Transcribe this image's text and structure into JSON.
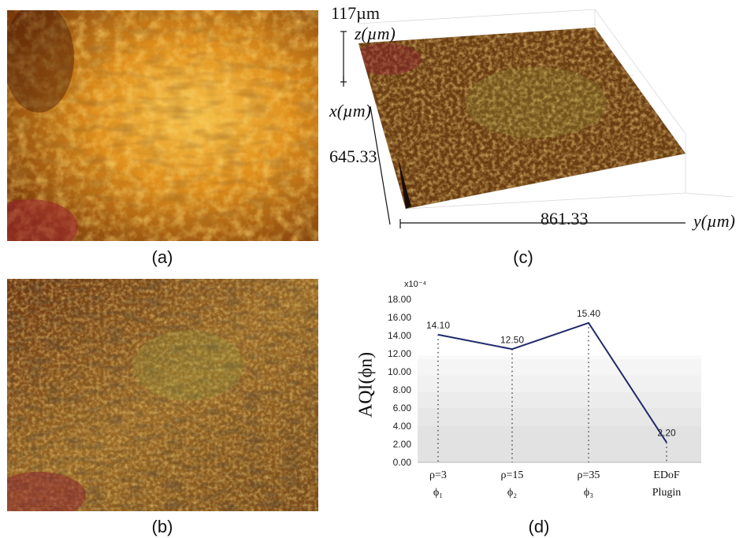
{
  "panels": {
    "a": {
      "caption": "(a)"
    },
    "b": {
      "caption": "(b)"
    },
    "c": {
      "caption": "(c)",
      "z_extent": "117µm",
      "z_axis": "z(µm)",
      "x_axis": "x(µm)",
      "x_extent": "645.33",
      "y_extent": "861.33",
      "y_axis": "y(µm)"
    },
    "d": {
      "caption": "(d)"
    }
  },
  "chart_data": {
    "type": "line",
    "ylabel": "AQI(ϕn)",
    "scale_note": "x10⁻⁴",
    "ylim": [
      0,
      18
    ],
    "yticks": [
      "0.00",
      "2.00",
      "4.00",
      "6.00",
      "8.00",
      "10.00",
      "12.00",
      "14.00",
      "16.00",
      "18.00"
    ],
    "categories": [
      {
        "line1": "ρ=3",
        "line2": "ϕ₁"
      },
      {
        "line1": "ρ=15",
        "line2": "ϕ₂"
      },
      {
        "line1": "ρ=35",
        "line2": "ϕ₃"
      },
      {
        "line1": "EDoF",
        "line2": "Plugin"
      }
    ],
    "values": [
      14.1,
      12.5,
      15.4,
      2.2
    ],
    "value_labels": [
      "14.10",
      "12.50",
      "15.40",
      "2.20"
    ],
    "line_color": "#1f2a6b"
  }
}
